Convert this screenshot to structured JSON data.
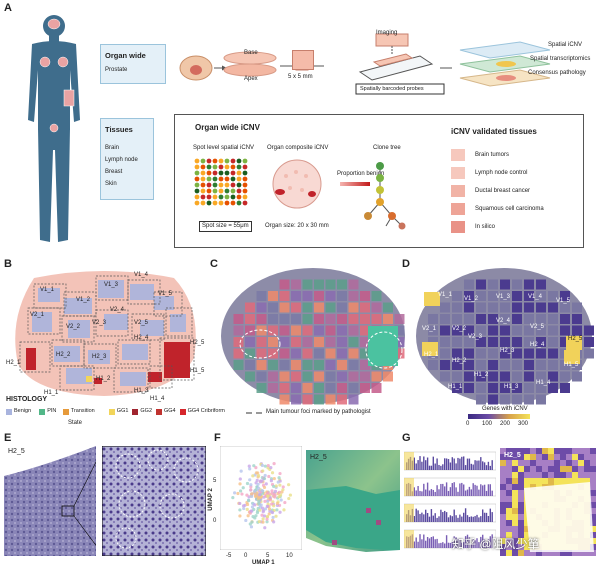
{
  "panels": {
    "a": "A",
    "b": "B",
    "c": "C",
    "d": "D",
    "e": "E",
    "f": "F",
    "g": "G"
  },
  "organ_wide": {
    "title": "Organ wide",
    "sub": "Prostate"
  },
  "tissues": {
    "title": "Tissues",
    "items": [
      "Brain",
      "Lymph node",
      "Breast",
      "Skin"
    ]
  },
  "workflow": {
    "base": "Base",
    "apex": "Apex",
    "block": "5 x 5 mm",
    "imaging": "Imaging",
    "probes": "Spatially barcoded probes",
    "layers": [
      "Spatial iCNV",
      "Spatial transcriptomics",
      "Consensus pathology"
    ]
  },
  "icnv": {
    "title": "Organ wide iCNV",
    "spot_label": "Spot level spatial iCNV",
    "composite_label": "Organ composite iCNV",
    "clone_label": "Clone tree",
    "proportion": "Proportion benign",
    "spot_size": "Spot size = 55μm",
    "organ_size": "Organ size: 20 x 30 mm"
  },
  "validated": {
    "title": "iCNV validated tissues",
    "items": [
      "Brain tumors",
      "Lymph node control",
      "Ductal breast cancer",
      "Squamous cell carcinoma",
      "In silico"
    ]
  },
  "sections": {
    "b": [
      "V1_1",
      "V1_2",
      "V1_3",
      "V1_4",
      "V1_5",
      "V2_1",
      "V2_2",
      "V2_3",
      "V2_4",
      "V2_5",
      "H2_1",
      "H2_2",
      "H2_3",
      "H2_4",
      "H2_5",
      "H1_1",
      "H1_2",
      "H1_3",
      "H1_4",
      "H1_5"
    ],
    "d": [
      "V1_1",
      "V1_2",
      "V1_3",
      "V1_4",
      "V1_5",
      "V2_1",
      "V2_2",
      "V2_3",
      "V2_4",
      "V2_5",
      "H2_1",
      "H2_2",
      "H2_3",
      "H2_4",
      "H2_5",
      "H1_1",
      "H1_2",
      "H1_3",
      "H1_4",
      "H1_5"
    ]
  },
  "histology": {
    "title": "HISTOLOGY",
    "state": "State",
    "legend": [
      {
        "label": "Benign",
        "color": "#a9b4de"
      },
      {
        "label": "PIN",
        "color": "#52b788"
      },
      {
        "label": "Transition",
        "color": "#e69a3b"
      },
      {
        "label": "GG1",
        "color": "#f2d55a"
      },
      {
        "label": "GG2",
        "color": "#a0242f"
      },
      {
        "label": "GG4",
        "color": "#c0332f"
      },
      {
        "label": "GG4 Cribriform",
        "color": "#d6262b"
      }
    ]
  },
  "panel_c": {
    "legend": "Main tumour foci marked by pathologist"
  },
  "panel_d": {
    "title": "Genes with iCNV",
    "ticks": [
      "0",
      "100",
      "200",
      "300"
    ]
  },
  "panel_e": {
    "label": "H2_5"
  },
  "panel_f": {
    "label": "H2_5",
    "xlabel": "UMAP 1",
    "ylabel": "UMAP 2",
    "xticks": [
      "-5",
      "0",
      "5",
      "10"
    ],
    "yticks": [
      "5",
      "0"
    ]
  },
  "panel_g": {
    "label": "H2_5"
  },
  "watermark": "知乎 @阻风少箪",
  "colors": {
    "accent": "#b8d7ea",
    "benign": "#a9b4de",
    "tumor": "#d6262b",
    "purple": "#4b3b8f"
  }
}
